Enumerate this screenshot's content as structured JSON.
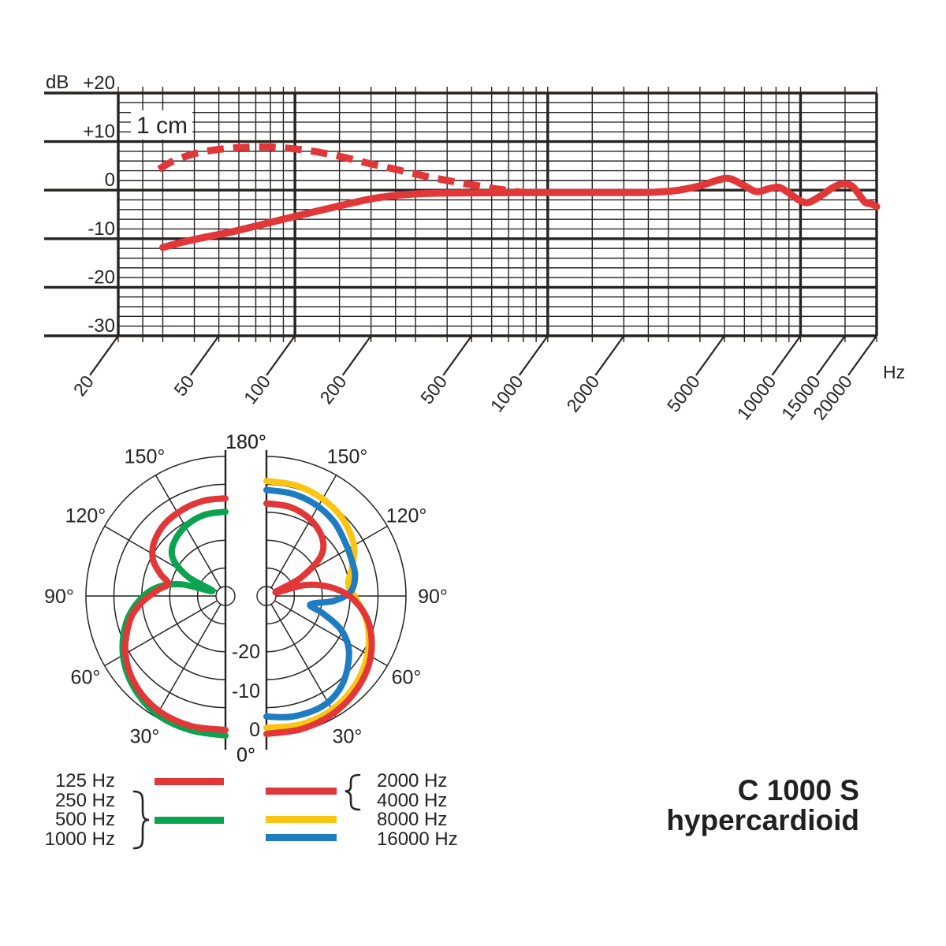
{
  "title": {
    "model": "C 1000 S",
    "pattern": "hypercardioid"
  },
  "colors": {
    "red": "#e23738",
    "green": "#0aa34f",
    "yellow": "#fbc513",
    "blue": "#1e7cc0",
    "ink": "#262321"
  },
  "ui": {
    "fr": {
      "y_unit": "dB",
      "x_unit": "Hz",
      "annotation": "1 cm",
      "y_tick_labels": [
        "+20",
        "+10",
        "0",
        "-10",
        "-20",
        "-30"
      ],
      "x_tick_labels": [
        "20",
        "50",
        "100",
        "200",
        "500",
        "1000",
        "2000",
        "5000",
        "10000",
        "15000",
        "20000"
      ]
    },
    "polar": {
      "angle_labels": [
        "0°",
        "30°",
        "60°",
        "90°",
        "120°",
        "150°",
        "180°"
      ],
      "radial_labels": [
        "-20",
        "-10",
        "0"
      ]
    },
    "legend": {
      "left_labels": [
        "125 Hz",
        "250 Hz",
        "500 Hz",
        "1000 Hz"
      ],
      "right_labels": [
        "2000 Hz",
        "4000 Hz",
        "8000 Hz",
        "16000 Hz"
      ]
    }
  },
  "chart_data": [
    {
      "id": "frequency_response",
      "type": "line",
      "x_scale": "log",
      "xlim": [
        20,
        20000
      ],
      "ylim": [
        -30,
        20
      ],
      "xlabel": "Hz",
      "ylabel": "dB",
      "grid": true,
      "y_major_ticks": [
        20,
        10,
        0,
        -10,
        -20,
        -30
      ],
      "y_minor_step": 2,
      "x_labeled_ticks": [
        20,
        50,
        100,
        200,
        500,
        1000,
        2000,
        5000,
        10000,
        15000,
        20000
      ],
      "x_thick_lines": [
        100,
        1000,
        10000
      ],
      "x_minor_pattern": [
        1,
        1.5,
        2,
        2.5,
        3,
        4,
        5,
        6,
        7,
        8,
        9
      ],
      "annotation": "1 cm",
      "series": [
        {
          "name": "response",
          "style": "solid",
          "color_key": "red",
          "points": [
            [
              30,
              -11.8
            ],
            [
              36,
              -10.7
            ],
            [
              45,
              -9.6
            ],
            [
              55,
              -8.7
            ],
            [
              70,
              -7.4
            ],
            [
              85,
              -6.3
            ],
            [
              100,
              -5.4
            ],
            [
              125,
              -4.2
            ],
            [
              160,
              -2.9
            ],
            [
              200,
              -1.8
            ],
            [
              250,
              -1.1
            ],
            [
              320,
              -0.7
            ],
            [
              400,
              -0.6
            ],
            [
              550,
              -0.55
            ],
            [
              800,
              -0.5
            ],
            [
              1200,
              -0.5
            ],
            [
              1800,
              -0.5
            ],
            [
              2500,
              -0.45
            ],
            [
              3200,
              -0.1
            ],
            [
              4000,
              0.9
            ],
            [
              4800,
              2.2
            ],
            [
              5300,
              2.3
            ],
            [
              6000,
              0.9
            ],
            [
              6700,
              -0.3
            ],
            [
              7500,
              0.3
            ],
            [
              8200,
              0.6
            ],
            [
              9000,
              -0.6
            ],
            [
              10000,
              -2.2
            ],
            [
              10800,
              -2.5
            ],
            [
              12000,
              -1.2
            ],
            [
              13500,
              0.6
            ],
            [
              14800,
              1.3
            ],
            [
              16000,
              0.8
            ],
            [
              17000,
              -0.8
            ],
            [
              18000,
              -2.5
            ],
            [
              19000,
              -2.8
            ],
            [
              20000,
              -3.4
            ]
          ]
        },
        {
          "name": "response_1cm",
          "style": "dashed",
          "color_key": "red",
          "points": [
            [
              29,
              4.3
            ],
            [
              33,
              6.0
            ],
            [
              40,
              7.5
            ],
            [
              50,
              8.4
            ],
            [
              62,
              8.8
            ],
            [
              78,
              8.9
            ],
            [
              95,
              8.6
            ],
            [
              115,
              8.1
            ],
            [
              140,
              7.3
            ],
            [
              170,
              6.3
            ],
            [
              200,
              5.4
            ],
            [
              240,
              4.5
            ],
            [
              290,
              3.5
            ],
            [
              340,
              2.7
            ],
            [
              400,
              2.0
            ],
            [
              460,
              1.4
            ],
            [
              530,
              0.9
            ],
            [
              600,
              0.4
            ],
            [
              680,
              0.0
            ],
            [
              780,
              -0.4
            ],
            [
              850,
              -0.5
            ]
          ]
        }
      ]
    },
    {
      "id": "polar_left",
      "type": "polar-half",
      "side": "left",
      "rings_db": [
        0,
        -5,
        -10,
        -15,
        -20
      ],
      "radial_label_values": [
        -20,
        -10,
        0
      ],
      "angle_ticks_deg": [
        0,
        30,
        60,
        90,
        120,
        150,
        180
      ],
      "series": [
        {
          "name": "250 / 500 / 1000 Hz",
          "color_key": "green",
          "points": [
            [
              0,
              0
            ],
            [
              15,
              -0.15
            ],
            [
              30,
              -0.5
            ],
            [
              45,
              -1.8
            ],
            [
              60,
              -3.8
            ],
            [
              75,
              -6.6
            ],
            [
              88,
              -9.8
            ],
            [
              98,
              -13.0
            ],
            [
              105,
              -17.0
            ],
            [
              111,
              -22.5
            ],
            [
              117,
              -17.5
            ],
            [
              125,
              -13.6
            ],
            [
              135,
              -11.8
            ],
            [
              150,
              -10.6
            ],
            [
              165,
              -10.0
            ],
            [
              180,
              -9.9
            ]
          ]
        },
        {
          "name": "125 Hz",
          "color_key": "red",
          "points": [
            [
              0,
              -1.0
            ],
            [
              15,
              -0.9
            ],
            [
              30,
              -1.2
            ],
            [
              45,
              -2.3
            ],
            [
              60,
              -4.3
            ],
            [
              75,
              -7.2
            ],
            [
              85,
              -9.8
            ],
            [
              95,
              -12.8
            ],
            [
              102,
              -14.5
            ],
            [
              109,
              -12.6
            ],
            [
              117,
              -10.4
            ],
            [
              127,
              -9.0
            ],
            [
              140,
              -8.1
            ],
            [
              155,
              -7.7
            ],
            [
              168,
              -7.5
            ],
            [
              180,
              -7.5
            ]
          ]
        }
      ]
    },
    {
      "id": "polar_right",
      "type": "polar-half",
      "side": "right",
      "rings_db": [
        0,
        -5,
        -10,
        -15,
        -20
      ],
      "angle_ticks_deg": [
        0,
        30,
        60,
        90,
        120,
        150,
        180
      ],
      "series": [
        {
          "name": "8000 Hz",
          "color_key": "yellow",
          "points": [
            [
              0,
              -1.4
            ],
            [
              15,
              -1.2
            ],
            [
              30,
              -1.5
            ],
            [
              45,
              -2.5
            ],
            [
              60,
              -4.1
            ],
            [
              75,
              -6.3
            ],
            [
              88,
              -8.9
            ],
            [
              98,
              -10.2
            ],
            [
              108,
              -8.9
            ],
            [
              120,
              -6.9
            ],
            [
              135,
              -5.6
            ],
            [
              150,
              -4.9
            ],
            [
              165,
              -4.5
            ],
            [
              180,
              -4.4
            ]
          ]
        },
        {
          "name": "16000 Hz",
          "color_key": "blue",
          "points": [
            [
              0,
              -3.4
            ],
            [
              12,
              -2.9
            ],
            [
              25,
              -2.8
            ],
            [
              35,
              -3.4
            ],
            [
              45,
              -4.9
            ],
            [
              57,
              -7.4
            ],
            [
              66,
              -10.5
            ],
            [
              73,
              -14.5
            ],
            [
              79,
              -17.0
            ],
            [
              86,
              -12.8
            ],
            [
              93,
              -9.9
            ],
            [
              103,
              -8.7
            ],
            [
              114,
              -8.4
            ],
            [
              125,
              -7.9
            ],
            [
              138,
              -7.0
            ],
            [
              152,
              -6.4
            ],
            [
              166,
              -6.1
            ],
            [
              180,
              -6.0
            ]
          ]
        },
        {
          "name": "2000 / 4000 Hz",
          "color_key": "red",
          "points": [
            [
              0,
              -0.3
            ],
            [
              15,
              -0.35
            ],
            [
              30,
              -0.8
            ],
            [
              45,
              -1.8
            ],
            [
              60,
              -3.4
            ],
            [
              75,
              -6.0
            ],
            [
              88,
              -9.5
            ],
            [
              98,
              -13.5
            ],
            [
              106,
              -18.0
            ],
            [
              112,
              -23.5
            ],
            [
              118,
              -18.0
            ],
            [
              126,
              -13.0
            ],
            [
              136,
              -10.6
            ],
            [
              150,
              -9.2
            ],
            [
              165,
              -8.5
            ],
            [
              180,
              -8.4
            ]
          ]
        }
      ]
    }
  ]
}
